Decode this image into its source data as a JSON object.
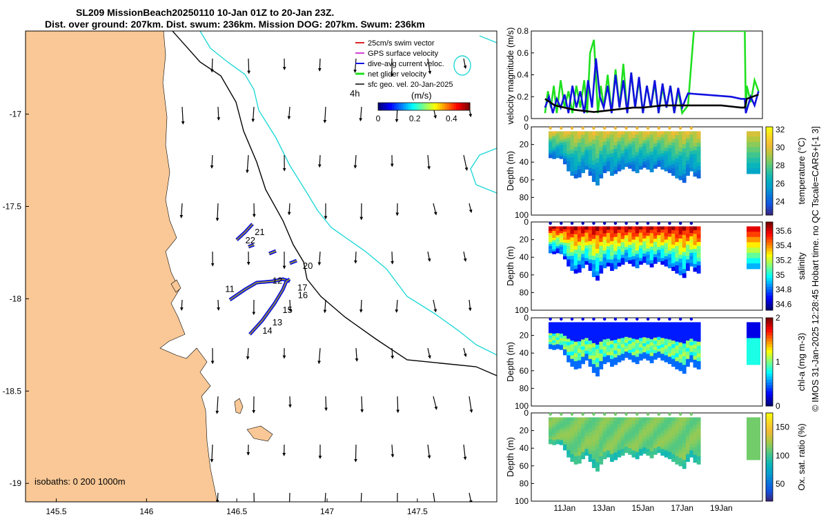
{
  "title": {
    "line1": "SL209 MissionBeach20250110 10-Jan 01Z to 20-Jan 23Z.",
    "line2": "Dist. over ground: 207km. Dist. swum: 236km. Mission DOG: 207km. Swum: 236km"
  },
  "colors": {
    "land": "#f9c896",
    "isobath_200": "#000000",
    "isobath_1000": "#22d8d8",
    "swim": "#e02020",
    "gps": "#d040d0",
    "dive_avg": "#1010e0",
    "net": "#20e020",
    "geo": "#000000"
  },
  "chart_data": [
    {
      "type": "scatter",
      "name": "map",
      "xlabel": "",
      "ylabel": "",
      "xlim": [
        145.33,
        147.94
      ],
      "ylim": [
        -19.1,
        -16.55
      ],
      "x_ticks": [
        "145.5",
        "146",
        "146.5",
        "147",
        "147.5"
      ],
      "y_ticks": [
        "-17",
        "-17.5",
        "-18",
        "-18.5",
        "-19"
      ],
      "legend": [
        "25cm/s swim vector",
        "GPS surface velocity",
        "dive-avg current veloc.",
        "net glider velocity",
        "sfc geo. vel. 20-Jan-2025"
      ],
      "scale_label": "4h",
      "colorbar": {
        "label": "(m/s)",
        "ticks": [
          "0",
          "0.2",
          "0.4"
        ],
        "range": [
          0,
          0.5
        ]
      },
      "isobath_note": "isobaths: 0   200  1000m",
      "track_labels": [
        "21",
        "22",
        "20",
        "12",
        "17",
        "11",
        "16",
        "15",
        "13",
        "14"
      ],
      "track_points": [
        {
          "label": "21",
          "lon": 146.58,
          "lat": -17.64
        },
        {
          "label": "22",
          "lon": 146.57,
          "lat": -17.7
        },
        {
          "label": "20",
          "lon": 146.82,
          "lat": -17.8
        },
        {
          "label": "12",
          "lon": 146.72,
          "lat": -17.91
        },
        {
          "label": "17",
          "lon": 146.79,
          "lat": -17.94
        },
        {
          "label": "11",
          "lon": 146.55,
          "lat": -17.97
        },
        {
          "label": "16",
          "lon": 146.8,
          "lat": -17.99
        },
        {
          "label": "15",
          "lon": 146.73,
          "lat": -18.07
        },
        {
          "label": "13",
          "lon": 146.67,
          "lat": -18.13
        },
        {
          "label": "14",
          "lon": 146.63,
          "lat": -18.16
        }
      ]
    },
    {
      "type": "line",
      "name": "velocity",
      "ylabel": "velocity magnitude (m/s)",
      "xlim": [
        9.3,
        21.1
      ],
      "ylim": [
        0,
        0.8
      ],
      "y_ticks": [
        "0",
        "0.2",
        "0.4",
        "0.6",
        "0.8"
      ],
      "series": [
        {
          "name": "net glider velocity",
          "x": [
            10.0,
            10.15,
            10.3,
            10.45,
            10.6,
            10.8,
            11.0,
            11.2,
            11.4,
            11.6,
            11.8,
            12.0,
            12.15,
            12.3,
            12.5,
            12.7,
            12.85,
            13.0,
            13.2,
            13.4,
            13.6,
            13.8,
            14.0,
            14.2,
            14.4,
            14.6,
            14.8,
            15.0,
            15.2,
            15.4,
            15.6,
            15.8,
            16.0,
            16.2,
            16.4,
            16.6,
            16.8,
            17.0,
            17.3,
            17.6,
            18.0,
            18.4,
            18.8,
            19.2,
            19.6,
            20.0,
            20.2,
            20.25,
            20.3,
            20.5,
            20.7,
            20.9
          ],
          "values": [
            0.05,
            0.25,
            0.1,
            0.3,
            0.05,
            0.35,
            0.1,
            0.25,
            0.05,
            0.3,
            0.1,
            0.35,
            0.05,
            0.6,
            0.72,
            0.05,
            0.3,
            0.1,
            0.4,
            0.05,
            0.45,
            0.1,
            0.5,
            0.05,
            0.42,
            0.1,
            0.35,
            0.05,
            0.3,
            0.1,
            0.32,
            0.05,
            0.28,
            0.1,
            0.3,
            0.05,
            0.25,
            0.05,
            0.12,
            0.8,
            0.8,
            0.8,
            0.8,
            0.8,
            0.8,
            0.8,
            0.8,
            0.05,
            0.3,
            0.15,
            0.35,
            0.25
          ]
        },
        {
          "name": "dive-avg current veloc.",
          "x": [
            10.0,
            10.2,
            10.4,
            10.6,
            10.8,
            11.0,
            11.2,
            11.4,
            11.6,
            11.8,
            12.0,
            12.2,
            12.4,
            12.6,
            12.8,
            13.0,
            13.2,
            13.4,
            13.6,
            13.8,
            14.0,
            14.2,
            14.4,
            14.6,
            14.8,
            15.0,
            15.2,
            15.4,
            15.6,
            15.8,
            16.0,
            16.2,
            16.4,
            16.6,
            16.8,
            17.0,
            17.3,
            19.5,
            20.0,
            20.2,
            20.25,
            20.5,
            20.7,
            20.9
          ],
          "values": [
            0.1,
            0.2,
            0.05,
            0.18,
            0.1,
            0.22,
            0.05,
            0.3,
            0.1,
            0.25,
            0.05,
            0.35,
            0.1,
            0.55,
            0.2,
            0.1,
            0.3,
            0.05,
            0.4,
            0.1,
            0.35,
            0.05,
            0.42,
            0.1,
            0.38,
            0.05,
            0.3,
            0.1,
            0.35,
            0.05,
            0.32,
            0.1,
            0.3,
            0.05,
            0.28,
            0.1,
            0.23,
            0.2,
            0.18,
            0.18,
            0.05,
            0.2,
            0.12,
            0.25
          ]
        },
        {
          "name": "sfc geo. vel.",
          "x": [
            10.0,
            10.5,
            11.0,
            11.5,
            12.0,
            12.5,
            13.0,
            13.5,
            14.0,
            14.5,
            15.0,
            15.5,
            16.0,
            16.5,
            17.0,
            17.5,
            18.0,
            18.5,
            19.0,
            19.5,
            20.0,
            20.2,
            20.3,
            20.6,
            20.9
          ],
          "values": [
            0.18,
            0.12,
            0.1,
            0.08,
            0.07,
            0.06,
            0.07,
            0.08,
            0.09,
            0.1,
            0.1,
            0.11,
            0.12,
            0.12,
            0.12,
            0.12,
            0.12,
            0.12,
            0.12,
            0.11,
            0.1,
            0.1,
            0.18,
            0.2,
            0.22
          ]
        }
      ]
    },
    {
      "type": "heatmap",
      "name": "temperature",
      "ylabel": "Depth (m)",
      "colorbar_label": "temperature (°C)",
      "colorbar_ticks": [
        "24",
        "26",
        "28",
        "30",
        "32"
      ],
      "crange": [
        22.5,
        32.3
      ],
      "ylim": [
        0,
        100
      ],
      "y_ticks": [
        "0",
        "20",
        "40",
        "60",
        "80",
        "100"
      ],
      "profile_depth_max": [
        35,
        36,
        35,
        36,
        42,
        50,
        55,
        58,
        57,
        52,
        48,
        55,
        62,
        66,
        58,
        52,
        50,
        55,
        53,
        50,
        48,
        45,
        47,
        50,
        52,
        48,
        46,
        48,
        51,
        47,
        45,
        48,
        50,
        52,
        55,
        58,
        60,
        63,
        55,
        50,
        56,
        58
      ]
    },
    {
      "type": "heatmap",
      "name": "salinity",
      "ylabel": "Depth (m)",
      "colorbar_label": "salinity",
      "colorbar_ticks": [
        "34.6",
        "34.8",
        "35",
        "35.2",
        "35.4",
        "35.6"
      ],
      "crange": [
        34.52,
        35.72
      ],
      "ylim": [
        0,
        100
      ],
      "y_ticks": [
        "0",
        "20",
        "40",
        "60",
        "80",
        "100"
      ]
    },
    {
      "type": "heatmap",
      "name": "chl-a",
      "ylabel": "Depth (m)",
      "colorbar_label": "chl-a (mg m-3)",
      "colorbar_ticks": [
        "0",
        "1",
        "2"
      ],
      "crange": [
        0,
        2
      ],
      "ylim": [
        0,
        100
      ],
      "y_ticks": [
        "0",
        "20",
        "40",
        "60",
        "80",
        "100"
      ]
    },
    {
      "type": "heatmap",
      "name": "oxygen",
      "ylabel": "Depth (m)",
      "colorbar_label": "Ox. sat. ratio (%)",
      "colorbar_ticks": [
        "50",
        "100",
        "150"
      ],
      "crange": [
        20,
        175
      ],
      "ylim": [
        0,
        100
      ],
      "y_ticks": [
        "0",
        "20",
        "40",
        "60",
        "80",
        "100"
      ],
      "x_ticks": [
        "11Jan",
        "13Jan",
        "15Jan",
        "17Jan",
        "19Jan"
      ]
    }
  ],
  "footer": "© IMOS 31-Jan-2025 12:28:45 Hobart time. no QC Tscale=CARS+[-1 3]"
}
